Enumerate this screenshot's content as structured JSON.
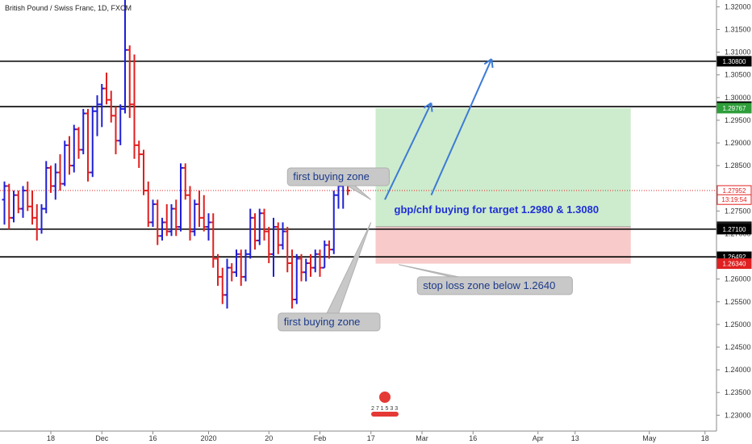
{
  "chart_data": {
    "type": "ohlc",
    "title": "British Pound / Swiss Franc, 1D, FXCM",
    "ylim": [
      1.2265,
      1.3215
    ],
    "y_ticks": [
      1.23,
      1.235,
      1.24,
      1.245,
      1.25,
      1.255,
      1.26,
      1.265,
      1.27,
      1.275,
      1.28,
      1.285,
      1.29,
      1.295,
      1.3,
      1.305,
      1.31,
      1.315,
      1.32
    ],
    "x_range": [
      0,
      146
    ],
    "x_labels": [
      {
        "i": 10,
        "label": "18"
      },
      {
        "i": 21,
        "label": "Dec"
      },
      {
        "i": 32,
        "label": "16"
      },
      {
        "i": 44,
        "label": "2020"
      },
      {
        "i": 57,
        "label": "20"
      },
      {
        "i": 68,
        "label": "Feb"
      },
      {
        "i": 79,
        "label": "17"
      },
      {
        "i": 90,
        "label": "Mar"
      },
      {
        "i": 101,
        "label": "16"
      },
      {
        "i": 115,
        "label": "Apr"
      },
      {
        "i": 123,
        "label": "13"
      },
      {
        "i": 139,
        "label": "May"
      },
      {
        "i": 151,
        "label": "18"
      }
    ],
    "bars": [
      {
        "o": 1.2775,
        "h": 1.2815,
        "l": 1.272,
        "c": 1.2805,
        "dir": "up"
      },
      {
        "o": 1.2805,
        "h": 1.281,
        "l": 1.271,
        "c": 1.2735,
        "dir": "down"
      },
      {
        "o": 1.2735,
        "h": 1.2795,
        "l": 1.2725,
        "c": 1.2785,
        "dir": "up"
      },
      {
        "o": 1.2785,
        "h": 1.2795,
        "l": 1.2745,
        "c": 1.2755,
        "dir": "down"
      },
      {
        "o": 1.2755,
        "h": 1.2805,
        "l": 1.2735,
        "c": 1.2795,
        "dir": "up"
      },
      {
        "o": 1.2795,
        "h": 1.2815,
        "l": 1.275,
        "c": 1.276,
        "dir": "down"
      },
      {
        "o": 1.276,
        "h": 1.2795,
        "l": 1.272,
        "c": 1.2735,
        "dir": "down"
      },
      {
        "o": 1.2735,
        "h": 1.2765,
        "l": 1.2685,
        "c": 1.271,
        "dir": "down"
      },
      {
        "o": 1.271,
        "h": 1.2765,
        "l": 1.27,
        "c": 1.2755,
        "dir": "up"
      },
      {
        "o": 1.2755,
        "h": 1.286,
        "l": 1.2745,
        "c": 1.2845,
        "dir": "up"
      },
      {
        "o": 1.2845,
        "h": 1.285,
        "l": 1.279,
        "c": 1.2805,
        "dir": "down"
      },
      {
        "o": 1.2805,
        "h": 1.2855,
        "l": 1.2775,
        "c": 1.2835,
        "dir": "up"
      },
      {
        "o": 1.2835,
        "h": 1.2875,
        "l": 1.2795,
        "c": 1.281,
        "dir": "down"
      },
      {
        "o": 1.281,
        "h": 1.2905,
        "l": 1.2805,
        "c": 1.2895,
        "dir": "up"
      },
      {
        "o": 1.2895,
        "h": 1.2915,
        "l": 1.283,
        "c": 1.285,
        "dir": "down"
      },
      {
        "o": 1.285,
        "h": 1.294,
        "l": 1.2835,
        "c": 1.293,
        "dir": "up"
      },
      {
        "o": 1.293,
        "h": 1.2935,
        "l": 1.2865,
        "c": 1.2885,
        "dir": "down"
      },
      {
        "o": 1.2885,
        "h": 1.2975,
        "l": 1.2875,
        "c": 1.2965,
        "dir": "up"
      },
      {
        "o": 1.2965,
        "h": 1.2975,
        "l": 1.2815,
        "c": 1.2835,
        "dir": "down"
      },
      {
        "o": 1.2835,
        "h": 1.298,
        "l": 1.2825,
        "c": 1.297,
        "dir": "up"
      },
      {
        "o": 1.297,
        "h": 1.3005,
        "l": 1.2915,
        "c": 1.2985,
        "dir": "up"
      },
      {
        "o": 1.2985,
        "h": 1.303,
        "l": 1.2935,
        "c": 1.302,
        "dir": "up"
      },
      {
        "o": 1.302,
        "h": 1.3055,
        "l": 1.2985,
        "c": 1.2995,
        "dir": "down"
      },
      {
        "o": 1.2995,
        "h": 1.3015,
        "l": 1.2945,
        "c": 1.296,
        "dir": "down"
      },
      {
        "o": 1.296,
        "h": 1.298,
        "l": 1.2875,
        "c": 1.2905,
        "dir": "down"
      },
      {
        "o": 1.2905,
        "h": 1.2985,
        "l": 1.2895,
        "c": 1.2975,
        "dir": "up"
      },
      {
        "o": 1.2975,
        "h": 1.3215,
        "l": 1.2965,
        "c": 1.3105,
        "dir": "up"
      },
      {
        "o": 1.3105,
        "h": 1.3115,
        "l": 1.2955,
        "c": 1.2985,
        "dir": "down"
      },
      {
        "o": 1.2985,
        "h": 1.3095,
        "l": 1.2865,
        "c": 1.2895,
        "dir": "down"
      },
      {
        "o": 1.2895,
        "h": 1.2905,
        "l": 1.2845,
        "c": 1.2875,
        "dir": "down"
      },
      {
        "o": 1.2875,
        "h": 1.2885,
        "l": 1.2785,
        "c": 1.2795,
        "dir": "down"
      },
      {
        "o": 1.2795,
        "h": 1.2815,
        "l": 1.2715,
        "c": 1.2725,
        "dir": "down"
      },
      {
        "o": 1.2725,
        "h": 1.2775,
        "l": 1.2715,
        "c": 1.2765,
        "dir": "up"
      },
      {
        "o": 1.2765,
        "h": 1.2775,
        "l": 1.2675,
        "c": 1.2695,
        "dir": "down"
      },
      {
        "o": 1.2695,
        "h": 1.2735,
        "l": 1.2685,
        "c": 1.2725,
        "dir": "up"
      },
      {
        "o": 1.2725,
        "h": 1.2765,
        "l": 1.2695,
        "c": 1.2705,
        "dir": "down"
      },
      {
        "o": 1.2705,
        "h": 1.2765,
        "l": 1.2695,
        "c": 1.2755,
        "dir": "up"
      },
      {
        "o": 1.2755,
        "h": 1.2775,
        "l": 1.2695,
        "c": 1.2715,
        "dir": "down"
      },
      {
        "o": 1.2715,
        "h": 1.2855,
        "l": 1.2705,
        "c": 1.2845,
        "dir": "up"
      },
      {
        "o": 1.2845,
        "h": 1.2855,
        "l": 1.2775,
        "c": 1.2785,
        "dir": "down"
      },
      {
        "o": 1.2785,
        "h": 1.2805,
        "l": 1.2685,
        "c": 1.2705,
        "dir": "down"
      },
      {
        "o": 1.2705,
        "h": 1.2775,
        "l": 1.2695,
        "c": 1.2765,
        "dir": "up"
      },
      {
        "o": 1.2765,
        "h": 1.2795,
        "l": 1.2715,
        "c": 1.2735,
        "dir": "down"
      },
      {
        "o": 1.2735,
        "h": 1.2785,
        "l": 1.2705,
        "c": 1.2715,
        "dir": "down"
      },
      {
        "o": 1.2715,
        "h": 1.2745,
        "l": 1.2685,
        "c": 1.2725,
        "dir": "up"
      },
      {
        "o": 1.2725,
        "h": 1.2745,
        "l": 1.2625,
        "c": 1.2645,
        "dir": "down"
      },
      {
        "o": 1.2645,
        "h": 1.2655,
        "l": 1.2585,
        "c": 1.2605,
        "dir": "down"
      },
      {
        "o": 1.2605,
        "h": 1.2625,
        "l": 1.2545,
        "c": 1.2565,
        "dir": "down"
      },
      {
        "o": 1.2565,
        "h": 1.2645,
        "l": 1.2535,
        "c": 1.2625,
        "dir": "up"
      },
      {
        "o": 1.2625,
        "h": 1.2635,
        "l": 1.2595,
        "c": 1.2615,
        "dir": "down"
      },
      {
        "o": 1.2615,
        "h": 1.2665,
        "l": 1.2605,
        "c": 1.2655,
        "dir": "up"
      },
      {
        "o": 1.2655,
        "h": 1.2665,
        "l": 1.2585,
        "c": 1.2605,
        "dir": "down"
      },
      {
        "o": 1.2605,
        "h": 1.2665,
        "l": 1.2595,
        "c": 1.2655,
        "dir": "up"
      },
      {
        "o": 1.2655,
        "h": 1.2755,
        "l": 1.2645,
        "c": 1.2735,
        "dir": "up"
      },
      {
        "o": 1.2735,
        "h": 1.2745,
        "l": 1.2665,
        "c": 1.2685,
        "dir": "down"
      },
      {
        "o": 1.2685,
        "h": 1.2755,
        "l": 1.2675,
        "c": 1.2745,
        "dir": "up"
      },
      {
        "o": 1.2745,
        "h": 1.2755,
        "l": 1.2685,
        "c": 1.2705,
        "dir": "down"
      },
      {
        "o": 1.2705,
        "h": 1.2715,
        "l": 1.2635,
        "c": 1.2655,
        "dir": "down"
      },
      {
        "o": 1.2655,
        "h": 1.2735,
        "l": 1.2605,
        "c": 1.2715,
        "dir": "up"
      },
      {
        "o": 1.2715,
        "h": 1.2725,
        "l": 1.2655,
        "c": 1.2675,
        "dir": "down"
      },
      {
        "o": 1.2675,
        "h": 1.2725,
        "l": 1.2665,
        "c": 1.2705,
        "dir": "up"
      },
      {
        "o": 1.2705,
        "h": 1.2715,
        "l": 1.2615,
        "c": 1.2635,
        "dir": "down"
      },
      {
        "o": 1.2635,
        "h": 1.2665,
        "l": 1.2535,
        "c": 1.2555,
        "dir": "down"
      },
      {
        "o": 1.2555,
        "h": 1.2655,
        "l": 1.2545,
        "c": 1.2645,
        "dir": "up"
      },
      {
        "o": 1.2645,
        "h": 1.2655,
        "l": 1.2595,
        "c": 1.2615,
        "dir": "down"
      },
      {
        "o": 1.2615,
        "h": 1.2645,
        "l": 1.2595,
        "c": 1.2635,
        "dir": "up"
      },
      {
        "o": 1.2635,
        "h": 1.2655,
        "l": 1.2605,
        "c": 1.2625,
        "dir": "down"
      },
      {
        "o": 1.2625,
        "h": 1.2665,
        "l": 1.2615,
        "c": 1.2655,
        "dir": "up"
      },
      {
        "o": 1.2655,
        "h": 1.2665,
        "l": 1.2605,
        "c": 1.2625,
        "dir": "down"
      },
      {
        "o": 1.2625,
        "h": 1.2685,
        "l": 1.2625,
        "c": 1.2675,
        "dir": "up"
      },
      {
        "o": 1.2675,
        "h": 1.2685,
        "l": 1.2645,
        "c": 1.2665,
        "dir": "down"
      },
      {
        "o": 1.2665,
        "h": 1.2795,
        "l": 1.2655,
        "c": 1.2785,
        "dir": "up"
      },
      {
        "o": 1.2785,
        "h": 1.2815,
        "l": 1.2755,
        "c": 1.2805,
        "dir": "up"
      },
      {
        "o": 1.2805,
        "h": 1.2825,
        "l": 1.2755,
        "c": 1.2815,
        "dir": "up"
      },
      {
        "o": 1.2815,
        "h": 1.2825,
        "l": 1.2785,
        "c": 1.2795,
        "dir": "down"
      }
    ],
    "price_tags": [
      {
        "value": 1.308,
        "label": "1.30800",
        "bg": "#000000",
        "fg": "#ffffff"
      },
      {
        "value": 1.298,
        "label": "1.29800",
        "bg": "#000000",
        "fg": "#ffffff"
      },
      {
        "value": 1.29767,
        "label": "1.29767",
        "bg": "#2e9e3a",
        "fg": "#ffffff"
      },
      {
        "value": 1.27952,
        "label": "1.27952",
        "bg": "#ffffff",
        "fg": "#e02020",
        "border": "#e02020"
      },
      {
        "value": 1.27752,
        "label": "13:19:54",
        "bg": "#ffffff",
        "fg": "#e02020",
        "border": "#e02020"
      },
      {
        "value": 1.27153,
        "label": "1.27153",
        "bg": "#1a1a1a",
        "fg": "#ffffff"
      },
      {
        "value": 1.271,
        "label": "1.27100",
        "bg": "#000000",
        "fg": "#ffffff"
      },
      {
        "value": 1.26492,
        "label": "1.26492",
        "bg": "#000000",
        "fg": "#ffffff"
      },
      {
        "value": 1.2634,
        "label": "1.26340",
        "bg": "#e02020",
        "fg": "#ffffff"
      }
    ],
    "horizontal_lines": [
      1.308,
      1.298,
      1.271,
      1.2649
    ],
    "current_price": 1.27952,
    "position": {
      "x_start": 80,
      "x_end": 135,
      "entry": 1.27153,
      "target": 1.29767,
      "stop": 1.2634
    },
    "arrows": [
      {
        "from": [
          82,
          1.2775
        ],
        "to": [
          92,
          1.2988
        ]
      },
      {
        "from": [
          92,
          1.2785
        ],
        "to": [
          105,
          1.3085
        ]
      }
    ],
    "annotations": [
      {
        "text": "first buying zone",
        "x": 61,
        "y": 1.2845,
        "to_x": 79,
        "to_y": 1.2775
      },
      {
        "text": "first buying zone",
        "x": 59,
        "y": 1.2525,
        "to_x": 79,
        "to_y": 1.2725
      },
      {
        "text": "stop loss zone below 1.2640",
        "x": 89,
        "y": 1.2605,
        "to_x": 85,
        "to_y": 1.2632
      },
      {
        "text": "gbp/chf buying for target 1.2980 & 1.3080",
        "x": 84,
        "y": 1.2745
      }
    ],
    "colors": {
      "up": "#1f1fd6",
      "down": "#e01f1f",
      "target_zone": "#cdeccd",
      "stop_zone": "#f8caca",
      "arrow": "#3d7bd6",
      "callout_bg": "#c8c8c8"
    },
    "grid": false,
    "logo_digits": "2 7 1 5 3 3"
  }
}
